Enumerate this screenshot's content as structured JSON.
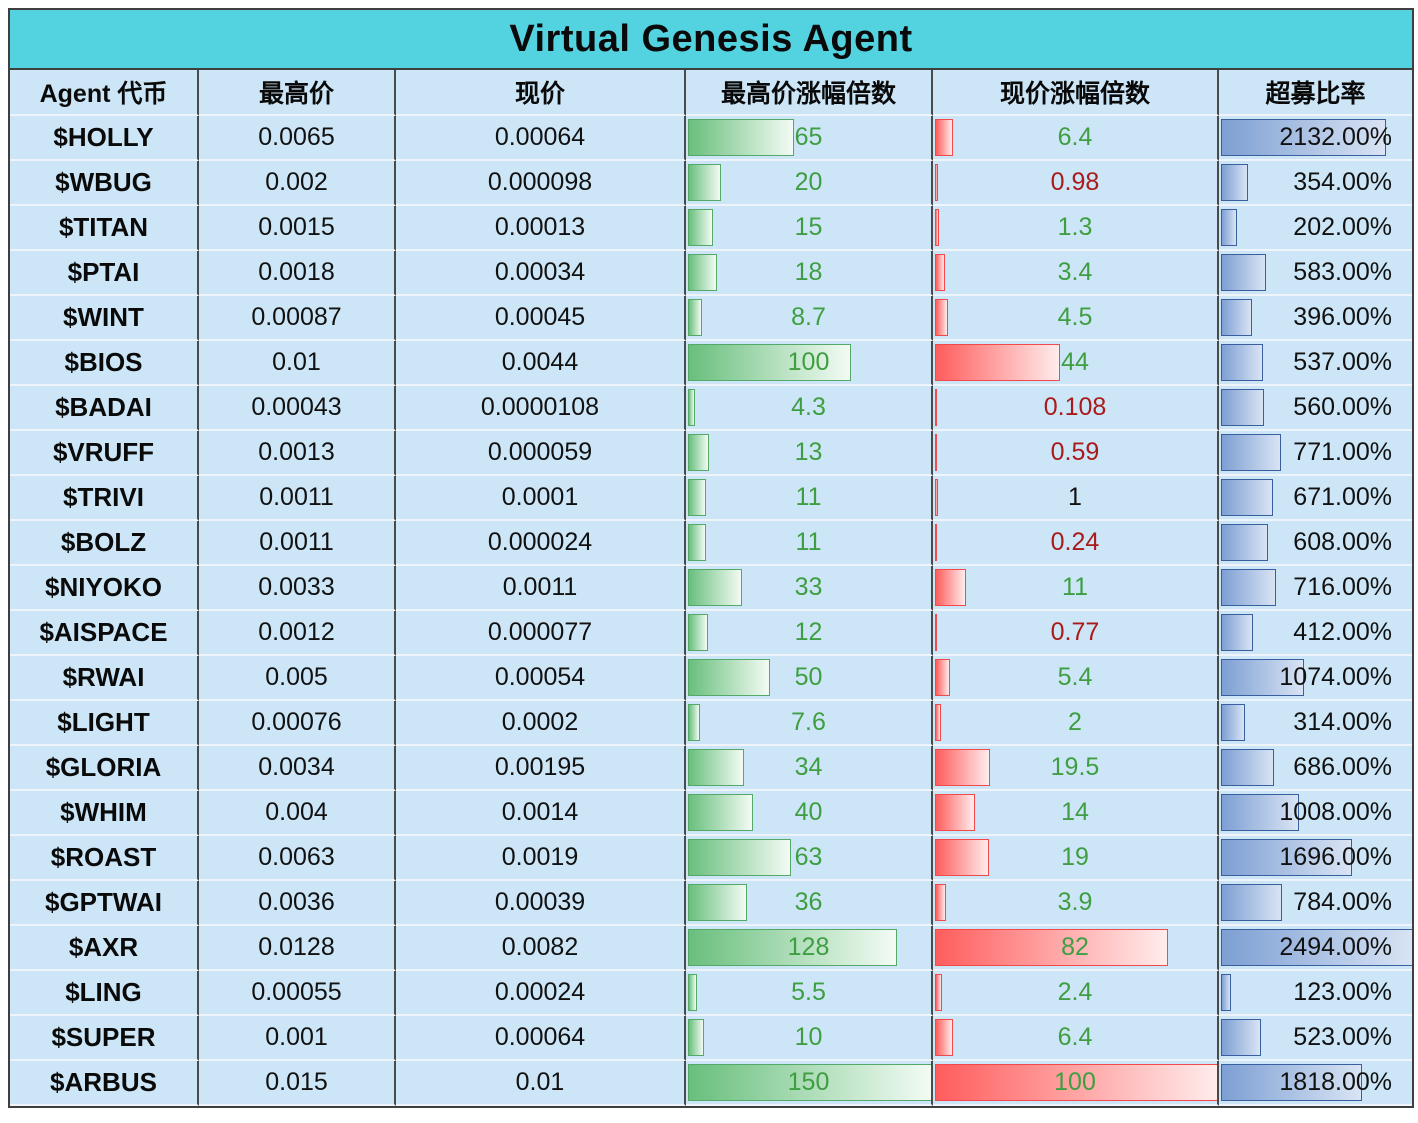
{
  "title": "Virtual Genesis Agent",
  "colors": {
    "title_bg": "#53d2e0",
    "row_bg": "#cde6f7",
    "green_text": "#3f9e42",
    "red_text": "#aa1a1a",
    "neutral_text": "#111111",
    "green_bar": "#69bf7d",
    "red_bar": "#ff5d5d",
    "blue_bar": "#7d9fd3"
  },
  "bars": {
    "high_multiple_max": 150,
    "current_multiple_max": 100,
    "ratio_max": 2494
  },
  "chart_data": {
    "type": "table",
    "title": "Virtual Genesis Agent",
    "columns": [
      "Agent 代币",
      "最高价",
      "现价",
      "最高价涨幅倍数",
      "现价涨幅倍数",
      "超募比率"
    ],
    "rows": [
      {
        "token": "$HOLLY",
        "high_price": "0.0065",
        "current_price": "0.00064",
        "high_multiple": 65,
        "current_multiple": 6.4,
        "ratio": "2132.00%",
        "ratio_value": 2132
      },
      {
        "token": "$WBUG",
        "high_price": "0.002",
        "current_price": "0.000098",
        "high_multiple": 20,
        "current_multiple": 0.98,
        "ratio": "354.00%",
        "ratio_value": 354
      },
      {
        "token": "$TITAN",
        "high_price": "0.0015",
        "current_price": "0.00013",
        "high_multiple": 15,
        "current_multiple": 1.3,
        "ratio": "202.00%",
        "ratio_value": 202
      },
      {
        "token": "$PTAI",
        "high_price": "0.0018",
        "current_price": "0.00034",
        "high_multiple": 18,
        "current_multiple": 3.4,
        "ratio": "583.00%",
        "ratio_value": 583
      },
      {
        "token": "$WINT",
        "high_price": "0.00087",
        "current_price": "0.00045",
        "high_multiple": 8.7,
        "current_multiple": 4.5,
        "ratio": "396.00%",
        "ratio_value": 396
      },
      {
        "token": "$BIOS",
        "high_price": "0.01",
        "current_price": "0.0044",
        "high_multiple": 100,
        "current_multiple": 44,
        "ratio": "537.00%",
        "ratio_value": 537
      },
      {
        "token": "$BADAI",
        "high_price": "0.00043",
        "current_price": "0.0000108",
        "high_multiple": 4.3,
        "current_multiple": 0.108,
        "ratio": "560.00%",
        "ratio_value": 560
      },
      {
        "token": "$VRUFF",
        "high_price": "0.0013",
        "current_price": "0.000059",
        "high_multiple": 13,
        "current_multiple": 0.59,
        "ratio": "771.00%",
        "ratio_value": 771
      },
      {
        "token": "$TRIVI",
        "high_price": "0.0011",
        "current_price": "0.0001",
        "high_multiple": 11,
        "current_multiple": 1,
        "ratio": "671.00%",
        "ratio_value": 671
      },
      {
        "token": "$BOLZ",
        "high_price": "0.0011",
        "current_price": "0.000024",
        "high_multiple": 11,
        "current_multiple": 0.24,
        "ratio": "608.00%",
        "ratio_value": 608
      },
      {
        "token": "$NIYOKO",
        "high_price": "0.0033",
        "current_price": "0.0011",
        "high_multiple": 33,
        "current_multiple": 11,
        "ratio": "716.00%",
        "ratio_value": 716
      },
      {
        "token": "$AISPACE",
        "high_price": "0.0012",
        "current_price": "0.000077",
        "high_multiple": 12,
        "current_multiple": 0.77,
        "ratio": "412.00%",
        "ratio_value": 412
      },
      {
        "token": "$RWAI",
        "high_price": "0.005",
        "current_price": "0.00054",
        "high_multiple": 50,
        "current_multiple": 5.4,
        "ratio": "1074.00%",
        "ratio_value": 1074
      },
      {
        "token": "$LIGHT",
        "high_price": "0.00076",
        "current_price": "0.0002",
        "high_multiple": 7.6,
        "current_multiple": 2,
        "ratio": "314.00%",
        "ratio_value": 314
      },
      {
        "token": "$GLORIA",
        "high_price": "0.0034",
        "current_price": "0.00195",
        "high_multiple": 34,
        "current_multiple": 19.5,
        "ratio": "686.00%",
        "ratio_value": 686
      },
      {
        "token": "$WHIM",
        "high_price": "0.004",
        "current_price": "0.0014",
        "high_multiple": 40,
        "current_multiple": 14,
        "ratio": "1008.00%",
        "ratio_value": 1008
      },
      {
        "token": "$ROAST",
        "high_price": "0.0063",
        "current_price": "0.0019",
        "high_multiple": 63,
        "current_multiple": 19,
        "ratio": "1696.00%",
        "ratio_value": 1696
      },
      {
        "token": "$GPTWAI",
        "high_price": "0.0036",
        "current_price": "0.00039",
        "high_multiple": 36,
        "current_multiple": 3.9,
        "ratio": "784.00%",
        "ratio_value": 784
      },
      {
        "token": "$AXR",
        "high_price": "0.0128",
        "current_price": "0.0082",
        "high_multiple": 128,
        "current_multiple": 82,
        "ratio": "2494.00%",
        "ratio_value": 2494
      },
      {
        "token": "$LING",
        "high_price": "0.00055",
        "current_price": "0.00024",
        "high_multiple": 5.5,
        "current_multiple": 2.4,
        "ratio": "123.00%",
        "ratio_value": 123
      },
      {
        "token": "$SUPER",
        "high_price": "0.001",
        "current_price": "0.00064",
        "high_multiple": 10,
        "current_multiple": 6.4,
        "ratio": "523.00%",
        "ratio_value": 523
      },
      {
        "token": "$ARBUS",
        "high_price": "0.015",
        "current_price": "0.01",
        "high_multiple": 150,
        "current_multiple": 100,
        "ratio": "1818.00%",
        "ratio_value": 1818
      }
    ]
  }
}
